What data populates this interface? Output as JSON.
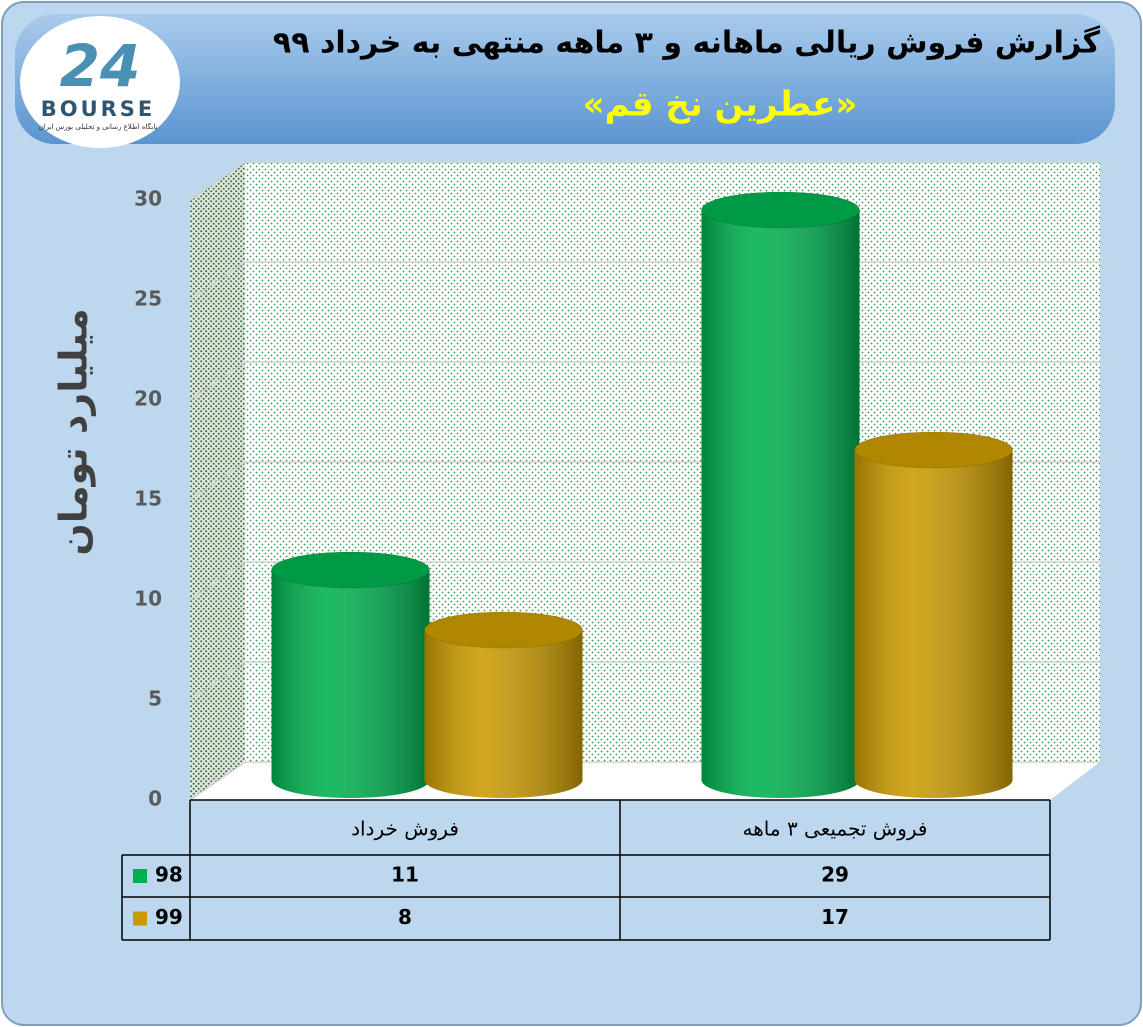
{
  "logo": {
    "mark": "24",
    "text": "BOURSE",
    "tagline": "پایگاه اطلاع رسانی و تحلیلی بورس ایران"
  },
  "chart_data": {
    "type": "bar3d",
    "title": "گزارش فروش ریالی ماهانه و ۳ ماهه منتهی به خرداد ۹۹",
    "subtitle": "«عطرین نخ قم»",
    "y_label": "میلیارد تومان",
    "categories": [
      "فروش خرداد",
      "فروش تجمیعی ۳ ماهه"
    ],
    "series": [
      {
        "name": "98",
        "color": "#00b050",
        "values": [
          11,
          29
        ]
      },
      {
        "name": "99",
        "color": "#c99a00",
        "values": [
          8,
          17
        ]
      }
    ],
    "ylim": [
      0,
      30
    ],
    "yticks": [
      0,
      5,
      10,
      15,
      20,
      25,
      30
    ],
    "grid": true,
    "data_table": true
  }
}
